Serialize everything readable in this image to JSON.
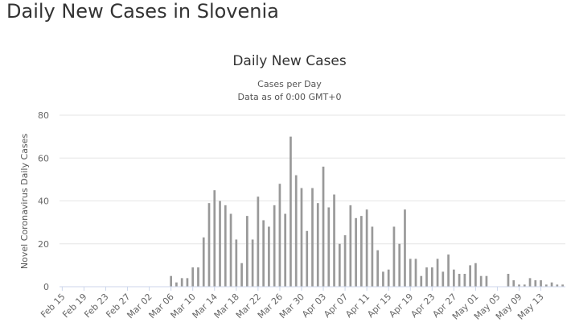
{
  "page": {
    "heading": "Daily New Cases in Slovenia"
  },
  "chart_data": {
    "type": "bar",
    "title": "Daily New Cases",
    "subtitle_line1": "Cases per Day",
    "subtitle_line2": "Data as of 0:00 GMT+0",
    "xlabel": "",
    "ylabel": "Novel Coronavirus Daily Cases",
    "ylim": [
      0,
      80
    ],
    "yticks": [
      "0",
      "20",
      "40",
      "60",
      "80"
    ],
    "grid": true,
    "start_date": "Feb 15",
    "tick_labels": [
      "Feb 15",
      "Feb 19",
      "Feb 23",
      "Feb 27",
      "Mar 02",
      "Mar 06",
      "Mar 10",
      "Mar 14",
      "Mar 18",
      "Mar 22",
      "Mar 26",
      "Mar 30",
      "Apr 03",
      "Apr 07",
      "Apr 11",
      "Apr 15",
      "Apr 19",
      "Apr 23",
      "Apr 27",
      "May 01",
      "May 05",
      "May 09",
      "May 13"
    ],
    "series": [
      {
        "name": "Daily Cases",
        "color": "#999999",
        "values": [
          0,
          0,
          0,
          0,
          0,
          0,
          0,
          0,
          0,
          0,
          0,
          0,
          0,
          0,
          0,
          0,
          0,
          0,
          0,
          0,
          5,
          2,
          4,
          4,
          9,
          9,
          23,
          39,
          45,
          40,
          38,
          34,
          22,
          11,
          33,
          22,
          42,
          31,
          28,
          38,
          48,
          34,
          70,
          52,
          46,
          26,
          46,
          39,
          56,
          37,
          43,
          20,
          24,
          38,
          32,
          33,
          36,
          28,
          17,
          7,
          8,
          28,
          20,
          36,
          13,
          13,
          5,
          9,
          9,
          13,
          7,
          15,
          8,
          6,
          6,
          10,
          11,
          5,
          5,
          0,
          0,
          0,
          6,
          3,
          1,
          1,
          4,
          3,
          3,
          1,
          2,
          1,
          1
        ]
      }
    ]
  }
}
